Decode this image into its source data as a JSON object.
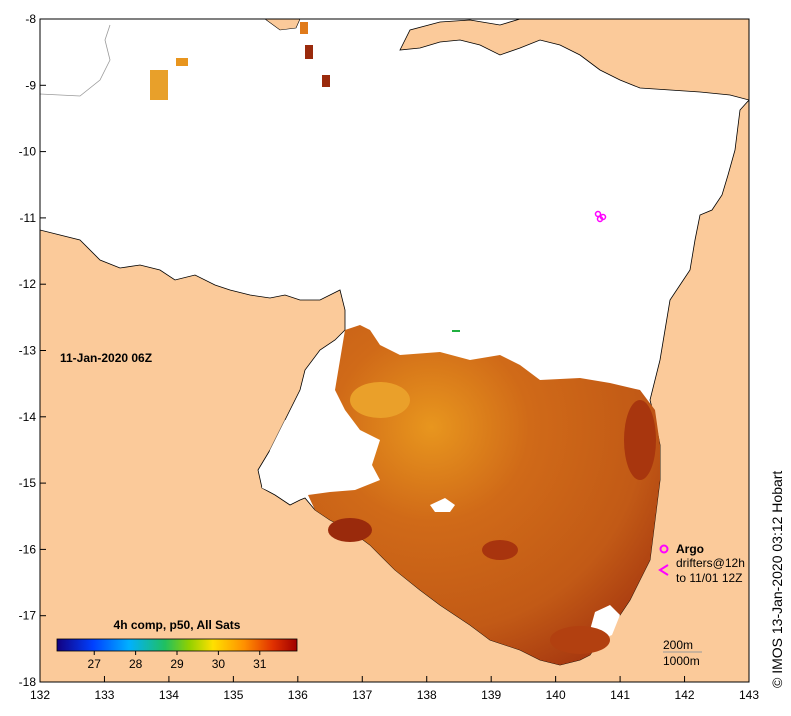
{
  "map": {
    "timestamp_label": "11-Jan-2020 06Z",
    "credit": "© IMOS 13-Jan-2020 03:12 Hobart",
    "x_ticks": [
      "132",
      "133",
      "134",
      "135",
      "136",
      "137",
      "138",
      "139",
      "140",
      "141",
      "142",
      "143"
    ],
    "y_ticks": [
      "-8",
      "-9",
      "-10",
      "-11",
      "-12",
      "-13",
      "-14",
      "-15",
      "-16",
      "-17",
      "-18"
    ],
    "lon_range": [
      132,
      143
    ],
    "lat_range": [
      -18,
      -8
    ]
  },
  "colorbar": {
    "title": "4h comp, p50, All Sats",
    "ticks": [
      "27",
      "28",
      "29",
      "30",
      "31"
    ],
    "tick_values": [
      27,
      28,
      29,
      30,
      31
    ],
    "range": [
      26.1,
      31.9
    ]
  },
  "legend": {
    "argo_label": "Argo",
    "drifters_label": "drifters@12h",
    "drifters_sub": "to 11/01 12Z",
    "depth_200": "200m",
    "depth_1000": "1000m"
  },
  "colors": {
    "land": "#fbca9a",
    "coast": "#000000",
    "sst_dominant": "#c8601a",
    "sst_warm": "#9a2a0c",
    "sst_cool": "#e8951e",
    "marker": "#ff00ff"
  },
  "icons": {
    "argo": "circle-marker-icon",
    "drifter": "chevron-left-icon"
  }
}
